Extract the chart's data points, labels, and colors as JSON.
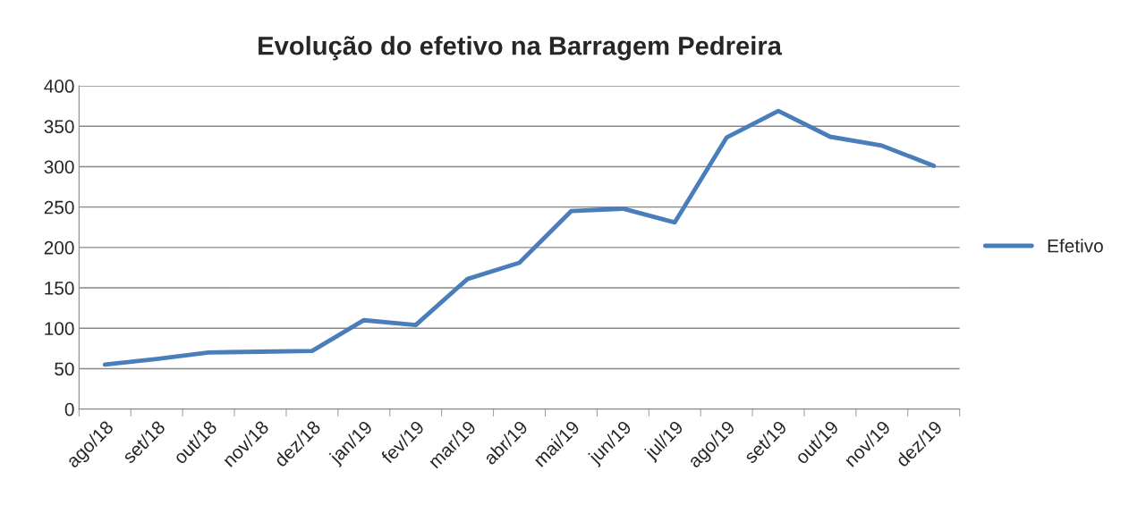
{
  "chart_data": {
    "type": "line",
    "title": "Evolução do efetivo na Barragem Pedreira",
    "categories": [
      "ago/18",
      "set/18",
      "out/18",
      "nov/18",
      "dez/18",
      "jan/19",
      "fev/19",
      "mar/19",
      "abr/19",
      "mai/19",
      "jun/19",
      "jul/19",
      "ago/19",
      "set/19",
      "out/19",
      "nov/19",
      "dez/19"
    ],
    "series": [
      {
        "name": "Efetivo",
        "color": "#4a7ebb",
        "values": [
          55,
          62,
          70,
          71,
          72,
          110,
          104,
          161,
          181,
          245,
          248,
          231,
          336,
          369,
          337,
          326,
          301
        ]
      }
    ],
    "ylim": [
      0,
      400
    ],
    "yticks": [
      0,
      50,
      100,
      150,
      200,
      250,
      300,
      350,
      400
    ],
    "grid": "y",
    "legend": "right",
    "marker": "none",
    "line_style": "solid"
  }
}
